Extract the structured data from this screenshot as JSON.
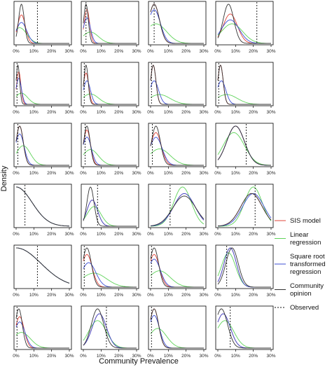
{
  "chart_data": {
    "type": "line",
    "xlabel": "Community Prevalence",
    "ylabel": "Density",
    "x_tick_labels": [
      "0%",
      "10%",
      "20%",
      "30%"
    ],
    "xlim": [
      0,
      30
    ],
    "legend": {
      "placement": "right",
      "entries": [
        {
          "label": "SIS model",
          "color": "#e0453a",
          "dash": "solid"
        },
        {
          "label": "Linear regression",
          "label_lines": [
            "Linear",
            "regression"
          ],
          "color": "#5fd35a",
          "dash": "solid"
        },
        {
          "label": "Square root transformed regression",
          "label_lines": [
            "Square root",
            "transformed",
            "regression"
          ],
          "color": "#3d4fd6",
          "dash": "solid"
        },
        {
          "label": "Community opinion",
          "label_lines": [
            "Community",
            "opinion"
          ],
          "color": "#333333",
          "dash": "solid"
        },
        {
          "label": "Observed",
          "label_lines": [
            "Observed"
          ],
          "color": "#111111",
          "dash": "dotted"
        }
      ]
    },
    "panels": [
      {
        "observed": 12,
        "series": {
          "sis": {
            "mu": 3,
            "sd": 2.2
          },
          "lin": {
            "mu": 2,
            "sd": 4
          },
          "sqrt": {
            "mu": 3,
            "sd": 3
          },
          "comm": {
            "mu": 3,
            "sd": 1.6
          }
        }
      },
      {
        "observed": 1.5,
        "series": {
          "sis": {
            "mu": 2,
            "sd": 1.5
          },
          "lin": {
            "mu": 4,
            "sd": 4.5
          },
          "sqrt": {
            "mu": 2,
            "sd": 2
          },
          "comm": {
            "mu": 1.5,
            "sd": 1.3
          }
        }
      },
      {
        "observed": 2,
        "series": {
          "sis": {
            "mu": 2,
            "sd": 3
          },
          "lin": {
            "mu": 3,
            "sd": 6
          },
          "sqrt": {
            "mu": 2,
            "sd": 3.5
          },
          "comm": {
            "mu": 2,
            "sd": 3
          }
        }
      },
      {
        "observed": 22,
        "series": {
          "sis": {
            "mu": 7,
            "sd": 4
          },
          "lin": {
            "mu": 8,
            "sd": 6
          },
          "sqrt": {
            "mu": 7,
            "sd": 5
          },
          "comm": {
            "mu": 6,
            "sd": 3
          }
        }
      },
      {
        "observed": 0.5,
        "series": {
          "sis": {
            "mu": 1.5,
            "sd": 1.2
          },
          "lin": {
            "mu": 3,
            "sd": 3.5
          },
          "sqrt": {
            "mu": 1.5,
            "sd": 1.5
          },
          "comm": {
            "mu": 1,
            "sd": 1
          }
        }
      },
      {
        "observed": 0.5,
        "series": {
          "sis": {
            "mu": 1.5,
            "sd": 1.5
          },
          "lin": {
            "mu": 4,
            "sd": 4.5
          },
          "sqrt": {
            "mu": 2,
            "sd": 2
          },
          "comm": {
            "mu": 1.5,
            "sd": 1.2
          }
        }
      },
      {
        "observed": 0.5,
        "series": {
          "sis": {
            "mu": 1.5,
            "sd": 1.5
          },
          "lin": {
            "mu": 5,
            "sd": 6
          },
          "sqrt": {
            "mu": 2,
            "sd": 2.5
          },
          "comm": {
            "mu": 1.5,
            "sd": 1.5
          }
        }
      },
      {
        "observed": 0.5,
        "series": {
          "sis": {
            "mu": 1.5,
            "sd": 1.5
          },
          "lin": {
            "mu": 5,
            "sd": 6
          },
          "sqrt": {
            "mu": 2,
            "sd": 2.5
          },
          "comm": {
            "mu": 1.5,
            "sd": 1.5
          }
        }
      },
      {
        "observed": 1,
        "series": {
          "sis": {
            "mu": 2,
            "sd": 2
          },
          "lin": {
            "mu": 4,
            "sd": 4
          },
          "sqrt": {
            "mu": 2,
            "sd": 2.5
          },
          "comm": {
            "mu": 2,
            "sd": 2
          }
        }
      },
      {
        "observed": 1,
        "series": {
          "sis": {
            "mu": 2,
            "sd": 2
          },
          "lin": {
            "mu": 4,
            "sd": 4.5
          },
          "sqrt": {
            "mu": 2,
            "sd": 2.5
          },
          "comm": {
            "mu": 2,
            "sd": 1.8
          }
        }
      },
      {
        "observed": 1,
        "series": {
          "sis": {
            "mu": 3,
            "sd": 3
          },
          "lin": {
            "mu": 5,
            "sd": 6
          },
          "sqrt": {
            "mu": 3,
            "sd": 3.5
          },
          "comm": {
            "mu": 3,
            "sd": 2.5
          }
        }
      },
      {
        "observed": 16,
        "series": {
          "sis": {
            "mu": 10,
            "sd": 5
          },
          "lin": {
            "mu": 9,
            "sd": 6
          },
          "sqrt": {
            "mu": 10,
            "sd": 5
          },
          "comm": {
            "mu": 10,
            "sd": 5
          }
        }
      },
      {
        "observed": 5,
        "series": {
          "sis": {
            "mu": 0,
            "sd": 9
          },
          "lin": {
            "mu": 0,
            "sd": 9
          },
          "sqrt": {
            "mu": 0,
            "sd": 9
          },
          "comm": {
            "mu": 0,
            "sd": 9
          }
        }
      },
      {
        "observed": 8,
        "series": {
          "sis": {
            "mu": 5,
            "sd": 3
          },
          "lin": {
            "mu": 6,
            "sd": 4
          },
          "sqrt": {
            "mu": 5,
            "sd": 3
          },
          "comm": {
            "mu": 4,
            "sd": 2
          }
        }
      },
      {
        "observed": 11,
        "series": {
          "sis": {
            "mu": 19,
            "sd": 6
          },
          "lin": {
            "mu": 18,
            "sd": 5
          },
          "sqrt": {
            "mu": 19,
            "sd": 6
          },
          "comm": {
            "mu": 19,
            "sd": 6.5
          }
        }
      },
      {
        "observed": 21,
        "series": {
          "sis": {
            "mu": 19,
            "sd": 6
          },
          "lin": {
            "mu": 20,
            "sd": 5
          },
          "sqrt": {
            "mu": 20,
            "sd": 6
          },
          "comm": {
            "mu": 19,
            "sd": 6
          }
        }
      },
      {
        "observed": 12,
        "series": {
          "sis": {
            "mu": 0,
            "sd": 14
          },
          "lin": {
            "mu": 0,
            "sd": 14
          },
          "sqrt": {
            "mu": 0,
            "sd": 14
          },
          "comm": {
            "mu": 0,
            "sd": 14
          }
        }
      },
      {
        "observed": 0.5,
        "series": {
          "sis": {
            "mu": 2,
            "sd": 3
          },
          "lin": {
            "mu": 6,
            "sd": 7
          },
          "sqrt": {
            "mu": 3,
            "sd": 4
          },
          "comm": {
            "mu": 2,
            "sd": 2.5
          }
        }
      },
      {
        "observed": 0.5,
        "series": {
          "sis": {
            "mu": 2,
            "sd": 3
          },
          "lin": {
            "mu": 5,
            "sd": 6
          },
          "sqrt": {
            "mu": 2,
            "sd": 3.5
          },
          "comm": {
            "mu": 2,
            "sd": 2.5
          }
        }
      },
      {
        "observed": 5,
        "series": {
          "sis": {
            "mu": 7,
            "sd": 3.5
          },
          "lin": {
            "mu": 6,
            "sd": 4
          },
          "sqrt": {
            "mu": 7,
            "sd": 3.5
          },
          "comm": {
            "mu": 8,
            "sd": 3.5
          }
        }
      },
      {
        "observed": 0.5,
        "series": {
          "sis": {
            "mu": 2,
            "sd": 2.5
          },
          "lin": {
            "mu": 3,
            "sd": 5
          },
          "sqrt": {
            "mu": 2,
            "sd": 3
          },
          "comm": {
            "mu": 1.5,
            "sd": 2
          }
        }
      },
      {
        "observed": 13,
        "series": {
          "sis": {
            "mu": 9,
            "sd": 4
          },
          "lin": {
            "mu": 8,
            "sd": 5
          },
          "sqrt": {
            "mu": 9,
            "sd": 4
          },
          "comm": {
            "mu": 8,
            "sd": 3.5
          }
        }
      },
      {
        "observed": 0.5,
        "series": {
          "sis": {
            "mu": 2,
            "sd": 2.5
          },
          "lin": {
            "mu": 4,
            "sd": 5
          },
          "sqrt": {
            "mu": 2,
            "sd": 3
          },
          "comm": {
            "mu": 2,
            "sd": 2.5
          }
        }
      },
      {
        "observed": 7,
        "series": {
          "sis": {
            "mu": 3,
            "sd": 4
          },
          "lin": {
            "mu": 4,
            "sd": 5
          },
          "sqrt": {
            "mu": 3,
            "sd": 4
          },
          "comm": {
            "mu": 2,
            "sd": 3.5
          }
        }
      }
    ]
  }
}
